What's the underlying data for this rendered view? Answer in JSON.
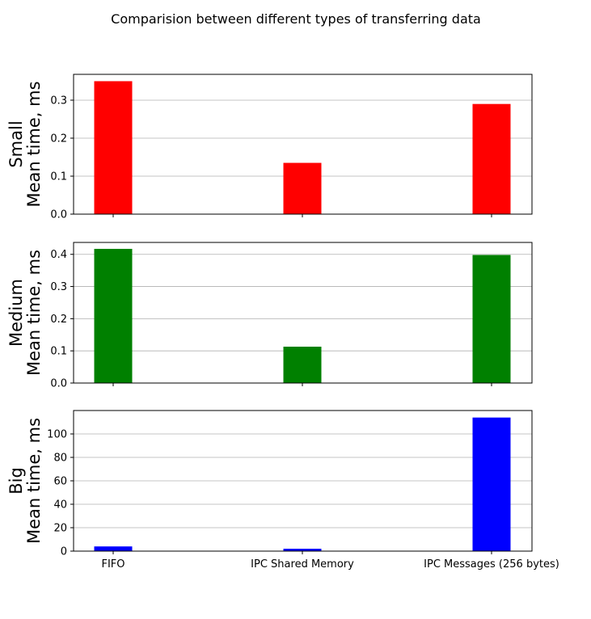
{
  "chart_data": {
    "title": "Comparision between different types of transferring data",
    "type": "bar",
    "categories": [
      "FIFO",
      "IPC Shared Memory",
      "IPC Messages (256 bytes)"
    ],
    "grid": "horizontal",
    "subplots": [
      {
        "ylabel_line1": "Small",
        "ylabel_line2": "Mean time, ms",
        "color": "#ff0000",
        "values": [
          0.35,
          0.135,
          0.29
        ],
        "ylim": [
          0,
          0.368
        ],
        "yticks": [
          0.0,
          0.1,
          0.2,
          0.3
        ],
        "ytick_labels": [
          "0.0",
          "0.1",
          "0.2",
          "0.3"
        ]
      },
      {
        "ylabel_line1": "Medium",
        "ylabel_line2": "Mean time, ms",
        "color": "#008000",
        "values": [
          0.417,
          0.113,
          0.398
        ],
        "ylim": [
          0,
          0.437
        ],
        "yticks": [
          0.0,
          0.1,
          0.2,
          0.3,
          0.4
        ],
        "ytick_labels": [
          "0.0",
          "0.1",
          "0.2",
          "0.3",
          "0.4"
        ]
      },
      {
        "ylabel_line1": "Big",
        "ylabel_line2": "Mean time, ms",
        "color": "#0000ff",
        "values": [
          4,
          2,
          114
        ],
        "ylim": [
          0,
          120
        ],
        "yticks": [
          0,
          20,
          40,
          60,
          80,
          100
        ],
        "ytick_labels": [
          "0",
          "20",
          "40",
          "60",
          "80",
          "100"
        ]
      }
    ]
  }
}
